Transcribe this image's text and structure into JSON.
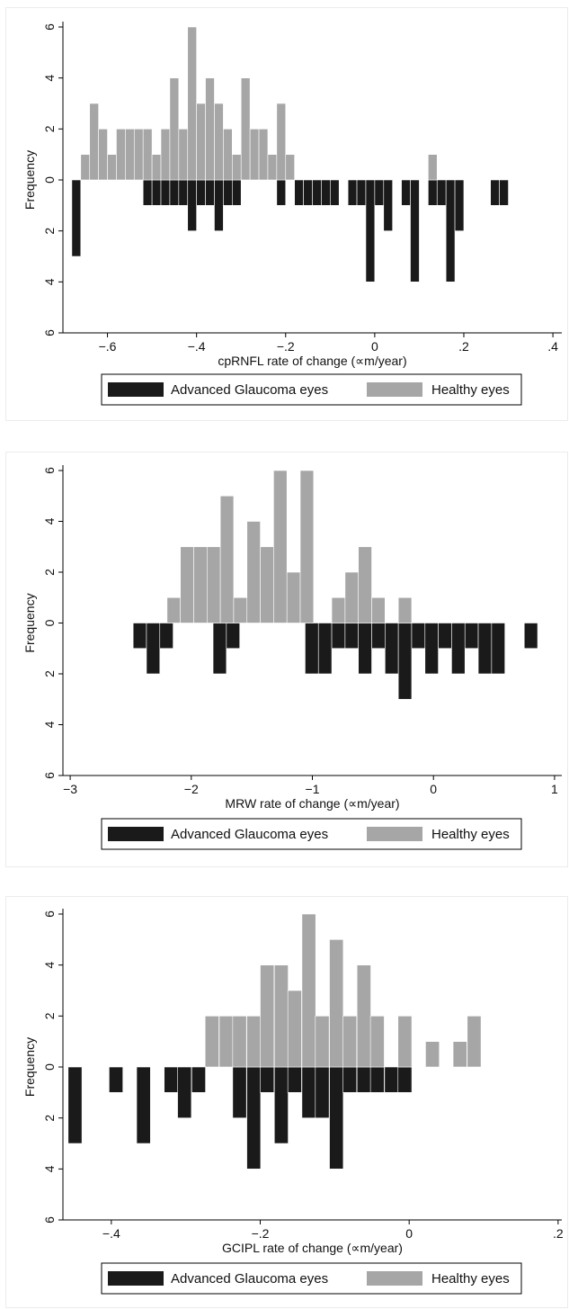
{
  "colors": {
    "advanced": "#1a1a1a",
    "healthy": "#a6a6a6",
    "axis": "#000000",
    "frame": "#ececec"
  },
  "chart_data": [
    {
      "type": "bar",
      "orientation": "mirrored-histogram",
      "title": "",
      "xlabel": "cpRNFL rate of change (∝m/year)",
      "ylabel": "Frequency",
      "xlim": [
        -0.7,
        0.42
      ],
      "ylim": [
        -6,
        6
      ],
      "bin_width": 0.02,
      "x_ticks": [
        -0.6,
        -0.4,
        -0.2,
        0,
        0.2,
        0.4
      ],
      "x_tick_labels": [
        "−.6",
        "−.4",
        "−.2",
        "0",
        ".2",
        ".4"
      ],
      "y_ticks": [
        6,
        4,
        2,
        0,
        -2,
        -4,
        -6
      ],
      "y_tick_labels": [
        "6",
        "4",
        "2",
        "0",
        "2",
        "4",
        "6"
      ],
      "grid": false,
      "legend_position": "bottom",
      "series": [
        {
          "name": "Advanced Glaucoma eyes",
          "direction": "down",
          "color": "#1a1a1a",
          "bins": [
            [
              -0.68,
              3
            ],
            [
              -0.52,
              1
            ],
            [
              -0.5,
              1
            ],
            [
              -0.48,
              1
            ],
            [
              -0.46,
              1
            ],
            [
              -0.44,
              1
            ],
            [
              -0.42,
              2
            ],
            [
              -0.4,
              1
            ],
            [
              -0.38,
              1
            ],
            [
              -0.36,
              2
            ],
            [
              -0.34,
              1
            ],
            [
              -0.32,
              1
            ],
            [
              -0.22,
              1
            ],
            [
              -0.18,
              1
            ],
            [
              -0.16,
              1
            ],
            [
              -0.14,
              1
            ],
            [
              -0.12,
              1
            ],
            [
              -0.1,
              1
            ],
            [
              -0.06,
              1
            ],
            [
              -0.04,
              1
            ],
            [
              -0.02,
              4
            ],
            [
              0.0,
              1
            ],
            [
              0.02,
              2
            ],
            [
              0.06,
              1
            ],
            [
              0.08,
              4
            ],
            [
              0.12,
              1
            ],
            [
              0.14,
              1
            ],
            [
              0.16,
              4
            ],
            [
              0.18,
              2
            ],
            [
              0.26,
              1
            ],
            [
              0.28,
              1
            ]
          ]
        },
        {
          "name": "Healthy eyes",
          "direction": "up",
          "color": "#a6a6a6",
          "bins": [
            [
              -0.66,
              1
            ],
            [
              -0.64,
              3
            ],
            [
              -0.62,
              2
            ],
            [
              -0.6,
              1
            ],
            [
              -0.58,
              2
            ],
            [
              -0.56,
              2
            ],
            [
              -0.54,
              2
            ],
            [
              -0.52,
              2
            ],
            [
              -0.5,
              1
            ],
            [
              -0.48,
              2
            ],
            [
              -0.46,
              4
            ],
            [
              -0.44,
              2
            ],
            [
              -0.42,
              6
            ],
            [
              -0.4,
              3
            ],
            [
              -0.38,
              4
            ],
            [
              -0.36,
              3
            ],
            [
              -0.34,
              2
            ],
            [
              -0.32,
              1
            ],
            [
              -0.3,
              4
            ],
            [
              -0.28,
              2
            ],
            [
              -0.26,
              2
            ],
            [
              -0.24,
              1
            ],
            [
              -0.22,
              3
            ],
            [
              -0.2,
              1
            ],
            [
              0.12,
              1
            ]
          ]
        }
      ]
    },
    {
      "type": "bar",
      "orientation": "mirrored-histogram",
      "title": "",
      "xlabel": "MRW rate of change (∝m/year)",
      "ylabel": "Frequency",
      "xlim": [
        -3.06,
        1.06
      ],
      "ylim": [
        -6,
        6
      ],
      "bin_width": 0.11,
      "x_ticks": [
        -3,
        -2,
        -1,
        0,
        1
      ],
      "x_tick_labels": [
        "−3",
        "−2",
        "−1",
        "0",
        "1"
      ],
      "y_ticks": [
        6,
        4,
        2,
        0,
        -2,
        -4,
        -6
      ],
      "y_tick_labels": [
        "6",
        "4",
        "2",
        "0",
        "2",
        "4",
        "6"
      ],
      "grid": false,
      "legend_position": "bottom",
      "series": [
        {
          "name": "Advanced Glaucoma eyes",
          "direction": "down",
          "color": "#1a1a1a",
          "bins": [
            [
              -2.48,
              1
            ],
            [
              -2.37,
              2
            ],
            [
              -2.26,
              1
            ],
            [
              -1.82,
              2
            ],
            [
              -1.71,
              1
            ],
            [
              -1.06,
              2
            ],
            [
              -0.95,
              2
            ],
            [
              -0.84,
              1
            ],
            [
              -0.73,
              1
            ],
            [
              -0.62,
              2
            ],
            [
              -0.51,
              1
            ],
            [
              -0.4,
              2
            ],
            [
              -0.29,
              3
            ],
            [
              -0.18,
              1
            ],
            [
              -0.07,
              2
            ],
            [
              0.04,
              1
            ],
            [
              0.15,
              2
            ],
            [
              0.26,
              1
            ],
            [
              0.37,
              2
            ],
            [
              0.48,
              2
            ],
            [
              0.75,
              1
            ]
          ]
        },
        {
          "name": "Healthy eyes",
          "direction": "up",
          "color": "#a6a6a6",
          "bins": [
            [
              -2.2,
              1
            ],
            [
              -2.09,
              3
            ],
            [
              -1.98,
              3
            ],
            [
              -1.87,
              3
            ],
            [
              -1.76,
              5
            ],
            [
              -1.65,
              1
            ],
            [
              -1.54,
              4
            ],
            [
              -1.43,
              3
            ],
            [
              -1.32,
              6
            ],
            [
              -1.21,
              2
            ],
            [
              -1.1,
              6
            ],
            [
              -0.84,
              1
            ],
            [
              -0.73,
              2
            ],
            [
              -0.62,
              3
            ],
            [
              -0.51,
              1
            ],
            [
              -0.29,
              1
            ]
          ]
        }
      ]
    },
    {
      "type": "bar",
      "orientation": "mirrored-histogram",
      "title": "",
      "xlabel": "GCIPL rate of change (∝m/year)",
      "ylabel": "Frequency",
      "xlim": [
        -0.465,
        0.205
      ],
      "ylim": [
        -6,
        6
      ],
      "bin_width": 0.0185,
      "x_ticks": [
        -0.4,
        -0.2,
        0,
        0.2
      ],
      "x_tick_labels": [
        "−.4",
        "−.2",
        "0",
        ".2"
      ],
      "y_ticks": [
        6,
        4,
        2,
        0,
        -2,
        -4,
        -6
      ],
      "y_tick_labels": [
        "6",
        "4",
        "2",
        "0",
        "2",
        "4",
        "6"
      ],
      "grid": false,
      "legend_position": "bottom",
      "series": [
        {
          "name": "Advanced Glaucoma eyes",
          "direction": "down",
          "color": "#1a1a1a",
          "bins": [
            [
              -0.458,
              3
            ],
            [
              -0.403,
              1
            ],
            [
              -0.366,
              3
            ],
            [
              -0.329,
              1
            ],
            [
              -0.311,
              2
            ],
            [
              -0.292,
              1
            ],
            [
              -0.237,
              2
            ],
            [
              -0.218,
              4
            ],
            [
              -0.2,
              1
            ],
            [
              -0.181,
              3
            ],
            [
              -0.163,
              1
            ],
            [
              -0.144,
              2
            ],
            [
              -0.126,
              2
            ],
            [
              -0.107,
              4
            ],
            [
              -0.089,
              1
            ],
            [
              -0.07,
              1
            ],
            [
              -0.052,
              1
            ],
            [
              -0.033,
              1
            ],
            [
              -0.015,
              1
            ]
          ]
        },
        {
          "name": "Healthy eyes",
          "direction": "up",
          "color": "#a6a6a6",
          "bins": [
            [
              -0.274,
              2
            ],
            [
              -0.255,
              2
            ],
            [
              -0.237,
              2
            ],
            [
              -0.218,
              2
            ],
            [
              -0.2,
              4
            ],
            [
              -0.181,
              4
            ],
            [
              -0.163,
              3
            ],
            [
              -0.144,
              6
            ],
            [
              -0.126,
              2
            ],
            [
              -0.107,
              5
            ],
            [
              -0.089,
              2
            ],
            [
              -0.07,
              4
            ],
            [
              -0.052,
              2
            ],
            [
              -0.015,
              2
            ],
            [
              0.022,
              1
            ],
            [
              0.059,
              1
            ],
            [
              0.078,
              2
            ]
          ]
        }
      ]
    }
  ]
}
